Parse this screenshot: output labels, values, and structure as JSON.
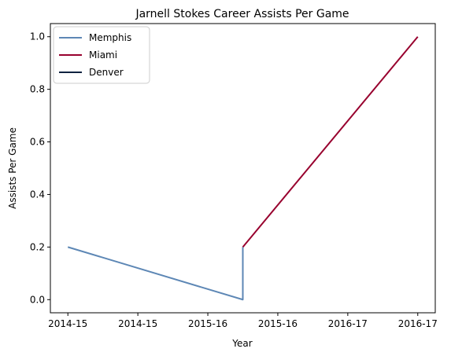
{
  "chart_data": {
    "type": "line",
    "title": "Jarnell Stokes Career Assists Per Game",
    "xlabel": "Year",
    "ylabel": "Assists Per Game",
    "x_tick_labels": [
      "2014-15",
      "2014-15",
      "2015-16",
      "2015-16",
      "2016-17",
      "2016-17"
    ],
    "y_ticks": [
      0.0,
      0.2,
      0.4,
      0.6,
      0.8,
      1.0
    ],
    "y_tick_labels": [
      "0.0",
      "0.2",
      "0.4",
      "0.6",
      "0.8",
      "1.0"
    ],
    "ylim": [
      -0.05,
      1.05
    ],
    "xlim": [
      -0.1,
      2.1
    ],
    "grid": false,
    "legend_position": "upper left",
    "series": [
      {
        "name": "Memphis",
        "color": "#5d87b5",
        "points": [
          {
            "x": 0.0,
            "y": 0.2
          },
          {
            "x": 1.0,
            "y": 0.0
          },
          {
            "x": 1.0,
            "y": 0.2
          }
        ]
      },
      {
        "name": "Miami",
        "color": "#98002e",
        "points": [
          {
            "x": 1.0,
            "y": 0.2
          },
          {
            "x": 2.0,
            "y": 1.0
          }
        ]
      },
      {
        "name": "Denver",
        "color": "#0e2240",
        "points": []
      }
    ]
  }
}
